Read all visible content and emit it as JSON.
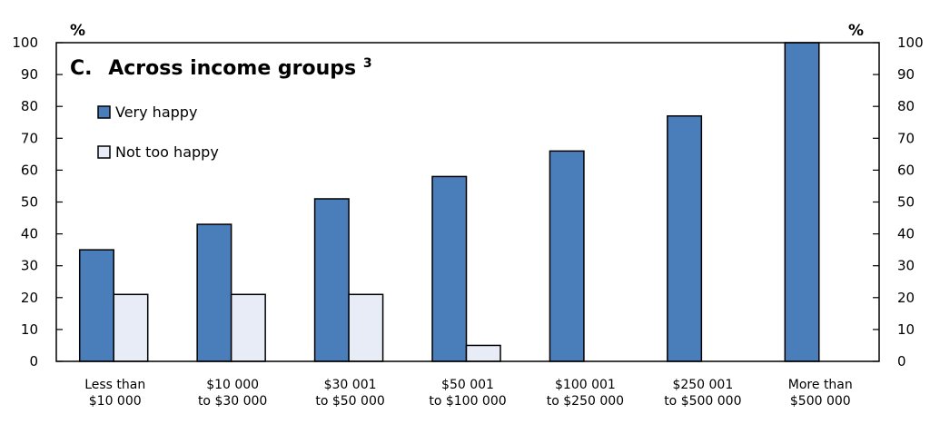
{
  "chart_data": {
    "type": "bar",
    "panel_label": "C.",
    "title": "Across income groups",
    "title_superscript": "3",
    "y_unit_left": "%",
    "y_unit_right": "%",
    "ylim": [
      0,
      100
    ],
    "yticks": [
      0,
      10,
      20,
      30,
      40,
      50,
      60,
      70,
      80,
      90,
      100
    ],
    "grid": false,
    "legend_position": "top-left",
    "categories": [
      [
        "Less than",
        "$10 000"
      ],
      [
        "$10 000",
        "to $30 000"
      ],
      [
        "$30 001",
        "to $50 000"
      ],
      [
        "$50 001",
        "to $100 000"
      ],
      [
        "$100 001",
        "to $250 000"
      ],
      [
        "$250 001",
        "to $500 000"
      ],
      [
        "More than",
        "$500 000"
      ]
    ],
    "series": [
      {
        "name": "Very happy",
        "color": "#4a7ebb",
        "values": [
          35,
          43,
          51,
          58,
          66,
          77,
          100
        ]
      },
      {
        "name": "Not too happy",
        "color": "#e8ecf7",
        "values": [
          21,
          21,
          21,
          5,
          0,
          0,
          0
        ]
      }
    ]
  }
}
